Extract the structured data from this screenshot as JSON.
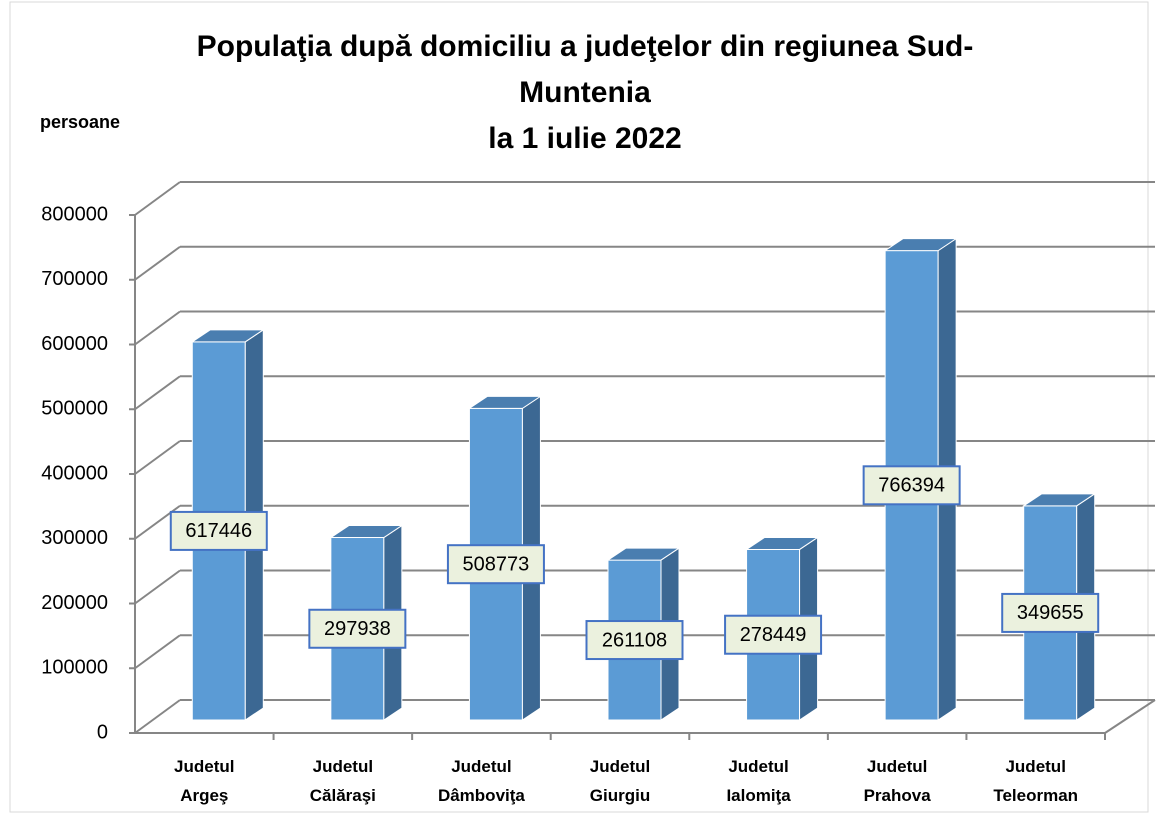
{
  "chart_data": {
    "type": "bar3d",
    "title": "Populaţia după domiciliu a judeţelor din regiunea Sud-Muntenia\nla 1 iulie 2022",
    "y_label": "persoane",
    "categories": [
      "Judetul Argeş",
      "Judetul Călăraşi",
      "Judetul Dâmboviţa",
      "Judetul Giurgiu",
      "Judetul Ialomiţa",
      "Judetul Prahova",
      "Judetul Teleorman"
    ],
    "values": [
      617446,
      297938,
      508773,
      261108,
      278449,
      766394,
      349655
    ],
    "color": "#5b9bd5",
    "ylim": [
      0,
      800000
    ],
    "yticks": [
      0,
      100000,
      200000,
      300000,
      400000,
      500000,
      600000,
      700000,
      800000
    ],
    "grid": true
  }
}
